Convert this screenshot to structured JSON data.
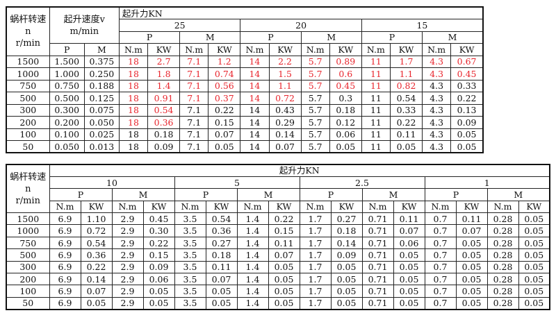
{
  "highlight_color": "#e8242c",
  "table1": {
    "speed_header": [
      "蜗杆转速",
      "n",
      "r/min"
    ],
    "velocity_header": [
      "起升速度v",
      "m/min"
    ],
    "velocity_sub": [
      "P",
      "M"
    ],
    "force_title": "起升力KN",
    "loads": [
      "25",
      "20",
      "15"
    ],
    "pm": [
      "P",
      "M"
    ],
    "units": [
      "N.m",
      "KW"
    ],
    "rows": [
      {
        "n": "1500",
        "vp": "1.500",
        "vm": "0.375",
        "cells": [
          "18",
          "2.7",
          "7.1",
          "1.2",
          "14",
          "2.2",
          "5.7",
          "0.89",
          "11",
          "1.7",
          "4.3",
          "0.67"
        ],
        "red": [
          0,
          1,
          2,
          3,
          4,
          5,
          6,
          7,
          8,
          9,
          10,
          11
        ]
      },
      {
        "n": "1000",
        "vp": "1.000",
        "vm": "0.250",
        "cells": [
          "18",
          "1.8",
          "7.1",
          "0.74",
          "14",
          "1.5",
          "5.7",
          "0.6",
          "11",
          "1.1",
          "4.3",
          "0.45"
        ],
        "red": [
          0,
          1,
          2,
          3,
          4,
          5,
          6,
          7,
          8,
          9,
          10,
          11
        ]
      },
      {
        "n": "750",
        "vp": "0.750",
        "vm": "0.188",
        "cells": [
          "18",
          "1.4",
          "7.1",
          "0.56",
          "14",
          "1.1",
          "5.7",
          "0.45",
          "11",
          "0.82",
          "4.3",
          "0.33"
        ],
        "red": [
          0,
          1,
          2,
          3,
          4,
          5,
          6,
          7,
          8,
          9
        ]
      },
      {
        "n": "500",
        "vp": "0.500",
        "vm": "0.125",
        "cells": [
          "18",
          "0.91",
          "7.1",
          "0.37",
          "14",
          "0.72",
          "5.7",
          "0.3",
          "11",
          "0.54",
          "4.3",
          "0.22"
        ],
        "red": [
          0,
          1,
          2,
          3,
          4,
          5
        ]
      },
      {
        "n": "300",
        "vp": "0.300",
        "vm": "0.075",
        "cells": [
          "18",
          "0.54",
          "7.1",
          "0.22",
          "14",
          "0.43",
          "5.7",
          "0.18",
          "11",
          "0.33",
          "4.3",
          "0.13"
        ],
        "red": [
          0,
          1
        ]
      },
      {
        "n": "200",
        "vp": "0.200",
        "vm": "0.050",
        "cells": [
          "18",
          "0.36",
          "7.1",
          "0.15",
          "14",
          "0.29",
          "5.7",
          "0.12",
          "11",
          "0.22",
          "4.3",
          "0.09"
        ],
        "red": [
          0,
          1
        ]
      },
      {
        "n": "100",
        "vp": "0.100",
        "vm": "0.025",
        "cells": [
          "18",
          "0.18",
          "7.1",
          "0.07",
          "14",
          "0.14",
          "5.7",
          "0.06",
          "11",
          "0.11",
          "4.3",
          "0.05"
        ],
        "red": []
      },
      {
        "n": "50",
        "vp": "0.050",
        "vm": "0.013",
        "cells": [
          "18",
          "0.09",
          "7.1",
          "0.05",
          "14",
          "0.07",
          "5.7",
          "0.05",
          "11",
          "0.05",
          "4.3",
          "0.05"
        ],
        "red": []
      }
    ]
  },
  "table2": {
    "speed_header": [
      "蜗杆转速",
      "n",
      "r/min"
    ],
    "force_title": "起升力KN",
    "loads": [
      "10",
      "5",
      "2.5",
      "1"
    ],
    "pm": [
      "P",
      "M"
    ],
    "units": [
      "N.m",
      "KW"
    ],
    "rows": [
      {
        "n": "1500",
        "cells": [
          "6.9",
          "1.10",
          "2.9",
          "0.45",
          "3.5",
          "0.54",
          "1.4",
          "0.22",
          "1.7",
          "0.27",
          "0.71",
          "0.11",
          "0.7",
          "0.11",
          "0.28",
          "0.05"
        ]
      },
      {
        "n": "1000",
        "cells": [
          "6.9",
          "0.72",
          "2.9",
          "0.30",
          "3.5",
          "0.36",
          "1.4",
          "0.15",
          "1.7",
          "0.18",
          "0.71",
          "0.07",
          "0.7",
          "0.07",
          "0.28",
          "0.05"
        ]
      },
      {
        "n": "750",
        "cells": [
          "6.9",
          "0.54",
          "2.9",
          "0.22",
          "3.5",
          "0.27",
          "1.4",
          "0.11",
          "1.7",
          "0.14",
          "0.71",
          "0.06",
          "0.7",
          "0.05",
          "0.28",
          "0.05"
        ]
      },
      {
        "n": "500",
        "cells": [
          "6.9",
          "0.36",
          "2.9",
          "0.15",
          "3.5",
          "0.18",
          "1.4",
          "0.07",
          "1.7",
          "0.09",
          "0.71",
          "0.05",
          "0.7",
          "0.05",
          "0.28",
          "0.05"
        ]
      },
      {
        "n": "300",
        "cells": [
          "6.9",
          "0.22",
          "2.9",
          "0.09",
          "3.5",
          "0.11",
          "1.4",
          "0.05",
          "1.7",
          "0.05",
          "0.71",
          "0.05",
          "0.7",
          "0.05",
          "0.28",
          "0.05"
        ]
      },
      {
        "n": "200",
        "cells": [
          "6.9",
          "0.14",
          "2.9",
          "0.06",
          "3.5",
          "0.07",
          "1.4",
          "0.05",
          "1.7",
          "0.05",
          "0.71",
          "0.05",
          "0.7",
          "0.05",
          "0.28",
          "0.05"
        ]
      },
      {
        "n": "100",
        "cells": [
          "6.9",
          "0.07",
          "2.9",
          "0.05",
          "3.5",
          "0.05",
          "1.4",
          "0.05",
          "1.7",
          "0.05",
          "0.71",
          "0.05",
          "0.7",
          "0.05",
          "0.28",
          "0.05"
        ]
      },
      {
        "n": "50",
        "cells": [
          "6.9",
          "0.05",
          "2.9",
          "0.05",
          "3.5",
          "0.05",
          "1.4",
          "0.05",
          "1.7",
          "0.05",
          "0.71",
          "0.05",
          "0.7",
          "0.05",
          "0.28",
          "0.05"
        ]
      }
    ]
  }
}
